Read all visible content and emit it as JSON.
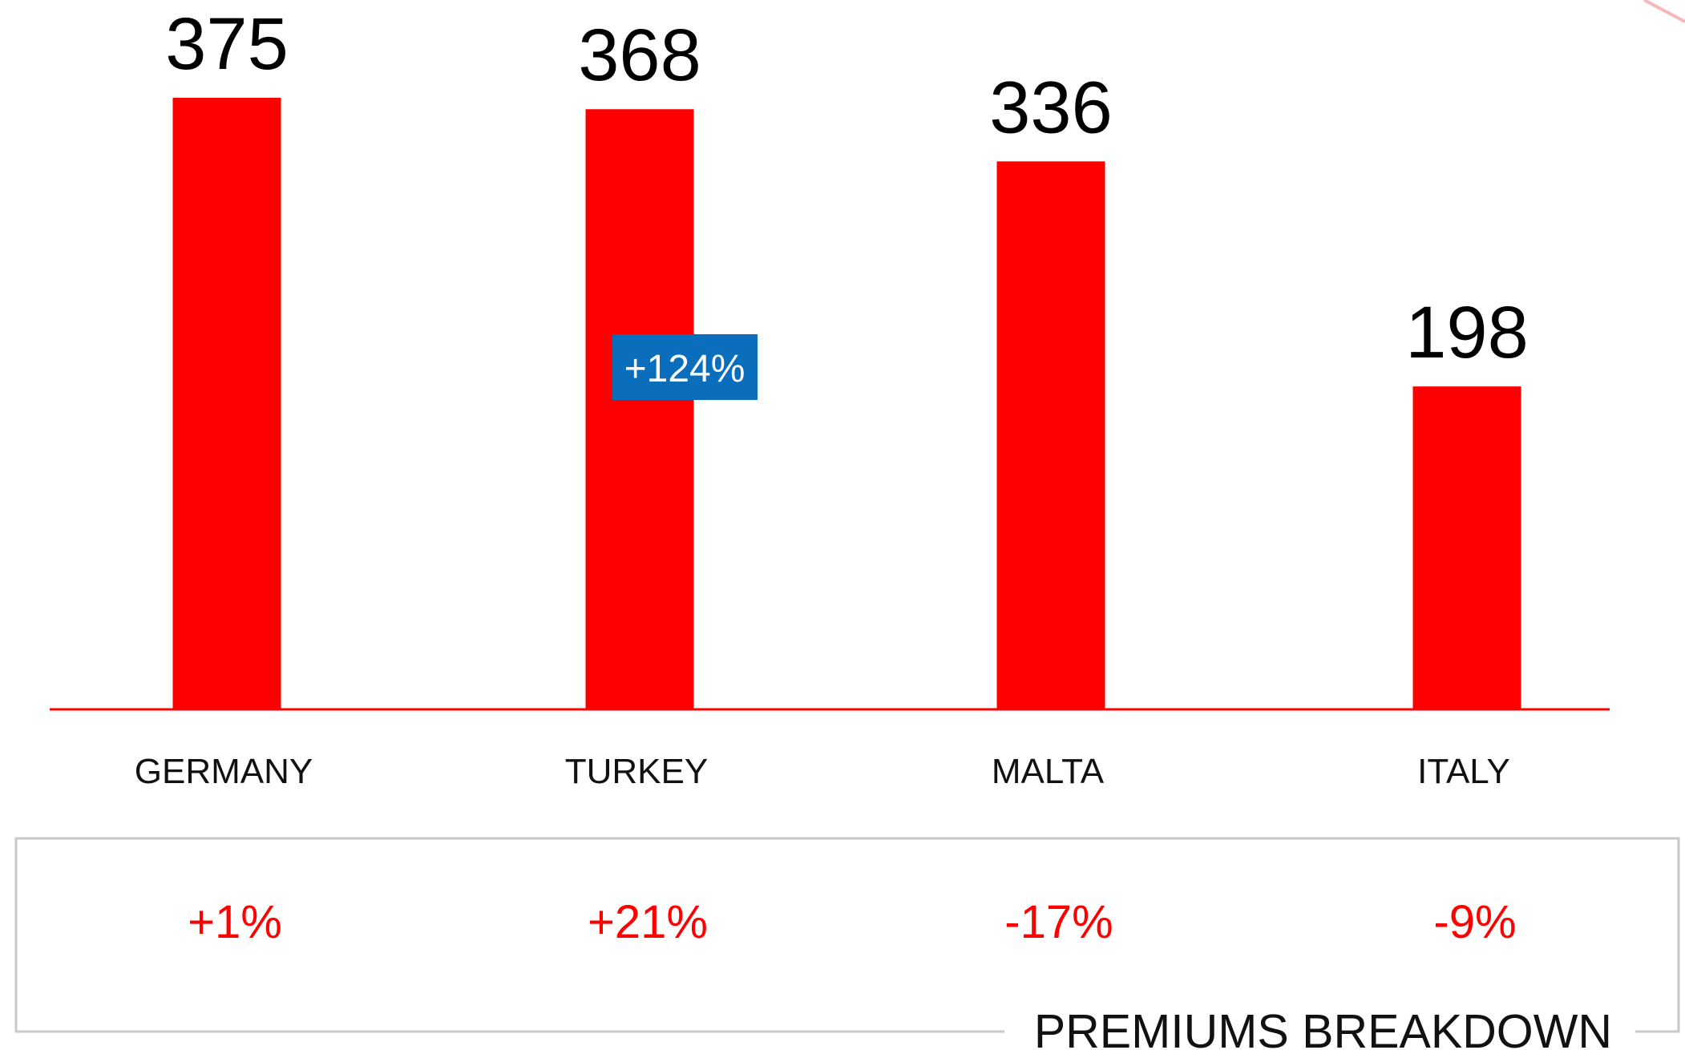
{
  "chart_data": {
    "type": "bar",
    "categories": [
      "GERMANY",
      "TURKEY",
      "MALTA",
      "ITALY"
    ],
    "values": [
      375,
      368,
      336,
      198
    ],
    "color": "#ff0000",
    "annotation": "+124%",
    "changes": [
      "+1%",
      "+21%",
      "-17%",
      "-9%"
    ],
    "box_label": "PREMIUMS BREAKDOWN"
  }
}
